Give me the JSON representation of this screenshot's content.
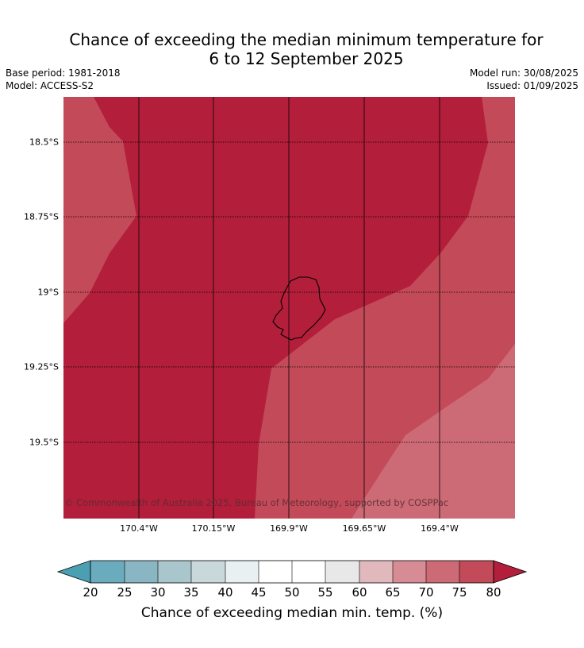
{
  "title_line1": "Chance of exceeding the median minimum temperature for",
  "title_line2": "6 to 12 September 2025",
  "base_period": "Base period: 1981-2018",
  "model": "Model: ACCESS-S2",
  "model_run": "Model run: 30/08/2025",
  "issued": "Issued: 01/09/2025",
  "lat_labels": [
    "18.5°S",
    "18.75°S",
    "19°S",
    "19.25°S",
    "19.5°S"
  ],
  "lon_labels": [
    "170.4°W",
    "170.15°W",
    "169.9°W",
    "169.65°W",
    "169.4°W"
  ],
  "copyright": "© Commonwealth of Australia 2025, Bureau of Meteorology, supported by COSPPac",
  "colorbar": {
    "ticks": [
      "20",
      "25",
      "30",
      "35",
      "40",
      "45",
      "50",
      "55",
      "60",
      "65",
      "70",
      "75",
      "80"
    ],
    "title": "Chance of exceeding median min. temp. (%)",
    "colors": {
      "below_20": "#4a9fb3",
      "20_25": "#6aabbd",
      "25_30": "#8ab5c2",
      "30_35": "#a8c6cb",
      "35_40": "#c8d8db",
      "40_45": "#e9f0f1",
      "45_50": "#ffffff",
      "50_55": "#ffffff",
      "55_60": "#e8e8e9",
      "60_65": "#e1b9bd",
      "65_70": "#d78b95",
      "70_75": "#cc6a75",
      "75_80": "#c34a58",
      "above_80": "#b31e3a"
    }
  },
  "map_colors": {
    "above_80": "#b31e3a",
    "75_80": "#c34a58",
    "70_75": "#cc6a75"
  }
}
